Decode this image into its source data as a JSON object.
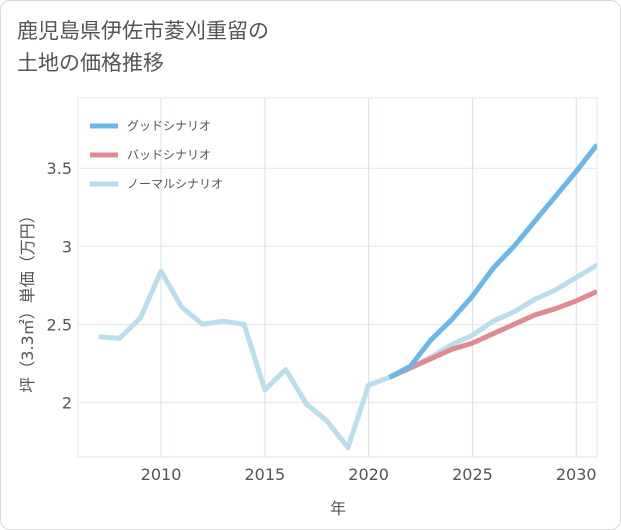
{
  "title_lines": [
    "鹿児島県伊佐市菱刈重留の",
    "土地の価格推移"
  ],
  "chart_data": {
    "type": "line",
    "title": "鹿児島県伊佐市菱刈重留の土地の価格推移",
    "xlabel": "年",
    "ylabel": "坪（3.3㎡）単価（万円）",
    "xlim": [
      2006,
      2031
    ],
    "ylim": [
      1.65,
      3.95
    ],
    "xticks": [
      2010,
      2015,
      2020,
      2025,
      2030
    ],
    "yticks": [
      2,
      2.5,
      3,
      3.5
    ],
    "ytick_labels": [
      "2",
      "2.5",
      "3",
      "3.5"
    ],
    "legend_position": "top-left",
    "series": [
      {
        "name": "グッドシナリオ",
        "color": "#6bb7ec",
        "x": [
          2021,
          2022,
          2023,
          2024,
          2025,
          2026,
          2027,
          2028,
          2029,
          2030,
          2031
        ],
        "y": [
          2.16,
          2.23,
          2.4,
          2.53,
          2.68,
          2.86,
          3.0,
          3.16,
          3.32,
          3.48,
          3.65
        ]
      },
      {
        "name": "バッドシナリオ",
        "color": "#e08a91",
        "x": [
          2021,
          2022,
          2023,
          2024,
          2025,
          2026,
          2027,
          2028,
          2029,
          2030,
          2031
        ],
        "y": [
          2.16,
          2.22,
          2.28,
          2.34,
          2.38,
          2.44,
          2.5,
          2.56,
          2.6,
          2.65,
          2.71
        ]
      },
      {
        "name": "ノーマルシナリオ",
        "color": "#b8dfeb",
        "x": [
          2007,
          2008,
          2009,
          2010,
          2011,
          2012,
          2013,
          2014,
          2015,
          2016,
          2017,
          2018,
          2019,
          2020,
          2021,
          2022,
          2023,
          2024,
          2025,
          2026,
          2027,
          2028,
          2029,
          2030,
          2031
        ],
        "y": [
          2.42,
          2.41,
          2.54,
          2.84,
          2.61,
          2.5,
          2.52,
          2.5,
          2.08,
          2.21,
          1.99,
          1.88,
          1.71,
          2.11,
          2.16,
          2.22,
          2.29,
          2.37,
          2.43,
          2.52,
          2.58,
          2.66,
          2.72,
          2.8,
          2.88
        ]
      }
    ]
  }
}
